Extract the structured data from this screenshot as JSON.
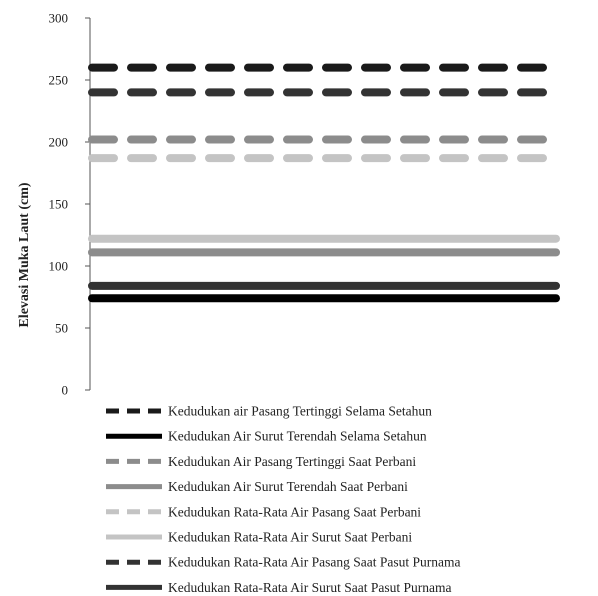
{
  "chart_data": {
    "type": "line",
    "title": "",
    "xlabel": "",
    "ylabel": "Elevasi Muka Laut (cm)",
    "ylim": [
      0,
      300
    ],
    "yticks": [
      0,
      50,
      100,
      150,
      200,
      250,
      300
    ],
    "grid": false,
    "legend_position": "bottom",
    "series": [
      {
        "name": "Kedudukan air Pasang Tertinggi Selama Setahun",
        "value": 260,
        "style": "dashed",
        "color": "#1a1a1a"
      },
      {
        "name": "Kedudukan Air Surut Terendah Selama Setahun",
        "value": 74,
        "style": "solid",
        "color": "#000000"
      },
      {
        "name": "Kedudukan Air Pasang Tertinggi Saat Perbani",
        "value": 202,
        "style": "dashed",
        "color": "#8c8c8c"
      },
      {
        "name": "Kedudukan Air Surut Terendah Saat Perbani",
        "value": 111,
        "style": "solid",
        "color": "#8c8c8c"
      },
      {
        "name": "Kedudukan Rata-Rata Air Pasang Saat Perbani",
        "value": 187,
        "style": "dashed",
        "color": "#c4c4c4"
      },
      {
        "name": "Kedudukan Rata-Rata Air Surut Saat Perbani",
        "value": 122,
        "style": "solid",
        "color": "#c4c4c4"
      },
      {
        "name": "Kedudukan Rata-Rata Air Pasang Saat Pasut Purnama",
        "value": 240,
        "style": "dashed",
        "color": "#333333"
      },
      {
        "name": "Kedudukan Rata-Rata Air Surut Saat Pasut Purnama",
        "value": 84,
        "style": "solid",
        "color": "#333333"
      }
    ]
  }
}
